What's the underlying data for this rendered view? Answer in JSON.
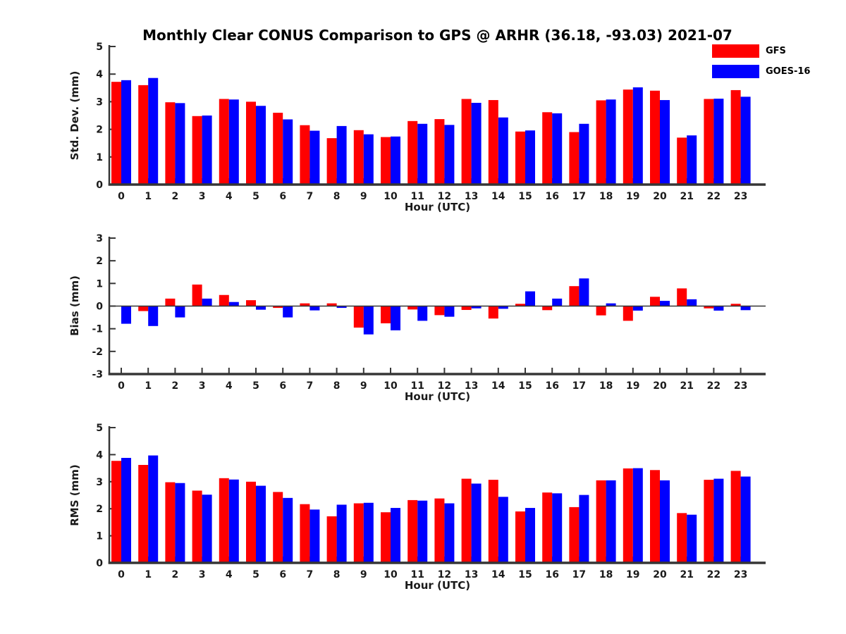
{
  "title": "Monthly Clear CONUS Comparison to GPS @ ARHR (36.18, -93.03) 2021-07",
  "legend": {
    "items": [
      {
        "label": "GFS",
        "color": "#ff0000"
      },
      {
        "label": "GOES-16",
        "color": "#0000ff"
      }
    ]
  },
  "colors": {
    "gfs": "#ff0000",
    "goes16": "#0000ff",
    "axis": "#363636",
    "tick_text": "#1a1a1a"
  },
  "chart_data": [
    {
      "type": "bar",
      "name": "std-dev",
      "ylabel": "Std. Dev. (mm)",
      "xlabel": "Hour (UTC)",
      "ylim": [
        0,
        5
      ],
      "yticks": [
        0,
        1,
        2,
        3,
        4,
        5
      ],
      "grid": false,
      "categories": [
        "0",
        "1",
        "2",
        "3",
        "4",
        "5",
        "6",
        "7",
        "8",
        "9",
        "10",
        "11",
        "12",
        "13",
        "14",
        "15",
        "16",
        "17",
        "18",
        "19",
        "20",
        "21",
        "22",
        "23"
      ],
      "series": [
        {
          "name": "GFS",
          "color": "#ff0000",
          "values": [
            3.72,
            3.6,
            2.98,
            2.48,
            3.1,
            3.0,
            2.6,
            2.15,
            1.68,
            1.97,
            1.72,
            2.3,
            2.37,
            3.1,
            3.06,
            1.92,
            2.62,
            1.9,
            3.05,
            3.44,
            3.4,
            1.7,
            3.1,
            3.42
          ]
        },
        {
          "name": "GOES-16",
          "color": "#0000ff",
          "values": [
            3.78,
            3.86,
            2.95,
            2.5,
            3.08,
            2.85,
            2.36,
            1.95,
            2.12,
            1.82,
            1.74,
            2.2,
            2.16,
            2.96,
            2.43,
            1.96,
            2.58,
            2.2,
            3.08,
            3.52,
            3.06,
            1.78,
            3.11,
            3.18
          ]
        }
      ]
    },
    {
      "type": "bar",
      "name": "bias",
      "ylabel": "Bias (mm)",
      "xlabel": "Hour (UTC)",
      "ylim": [
        -3,
        3
      ],
      "yticks": [
        -3,
        -2,
        -1,
        0,
        1,
        2,
        3
      ],
      "zero_line": true,
      "grid": false,
      "categories": [
        "0",
        "1",
        "2",
        "3",
        "4",
        "5",
        "6",
        "7",
        "8",
        "9",
        "10",
        "11",
        "12",
        "13",
        "14",
        "15",
        "16",
        "17",
        "18",
        "19",
        "20",
        "21",
        "22",
        "23"
      ],
      "series": [
        {
          "name": "GFS",
          "color": "#ff0000",
          "values": [
            0.0,
            -0.22,
            0.33,
            0.95,
            0.49,
            0.26,
            -0.08,
            0.12,
            0.12,
            -0.95,
            -0.76,
            -0.15,
            -0.4,
            -0.17,
            -0.55,
            0.1,
            -0.18,
            0.88,
            -0.41,
            -0.65,
            0.41,
            0.78,
            -0.1,
            0.1
          ]
        },
        {
          "name": "GOES-16",
          "color": "#0000ff",
          "values": [
            -0.78,
            -0.88,
            -0.5,
            0.33,
            0.18,
            -0.16,
            -0.5,
            -0.19,
            -0.08,
            -1.25,
            -1.07,
            -0.65,
            -0.47,
            -0.1,
            -0.12,
            0.65,
            0.33,
            1.22,
            0.12,
            -0.2,
            0.23,
            0.3,
            -0.2,
            -0.18
          ]
        }
      ]
    },
    {
      "type": "bar",
      "name": "rms",
      "ylabel": "RMS (mm)",
      "xlabel": "Hour (UTC)",
      "ylim": [
        0,
        5
      ],
      "yticks": [
        0,
        1,
        2,
        3,
        4,
        5
      ],
      "grid": false,
      "categories": [
        "0",
        "1",
        "2",
        "3",
        "4",
        "5",
        "6",
        "7",
        "8",
        "9",
        "10",
        "11",
        "12",
        "13",
        "14",
        "15",
        "16",
        "17",
        "18",
        "19",
        "20",
        "21",
        "22",
        "23"
      ],
      "series": [
        {
          "name": "GFS",
          "color": "#ff0000",
          "values": [
            3.77,
            3.62,
            2.98,
            2.67,
            3.13,
            3.0,
            2.62,
            2.17,
            1.72,
            2.2,
            1.87,
            2.32,
            2.38,
            3.11,
            3.07,
            1.9,
            2.6,
            2.06,
            3.05,
            3.49,
            3.43,
            1.84,
            3.07,
            3.4
          ]
        },
        {
          "name": "GOES-16",
          "color": "#0000ff",
          "values": [
            3.88,
            3.97,
            2.95,
            2.52,
            3.08,
            2.85,
            2.4,
            1.97,
            2.15,
            2.22,
            2.03,
            2.3,
            2.2,
            2.93,
            2.44,
            2.03,
            2.57,
            2.51,
            3.05,
            3.5,
            3.05,
            1.78,
            3.11,
            3.19
          ]
        }
      ]
    }
  ]
}
